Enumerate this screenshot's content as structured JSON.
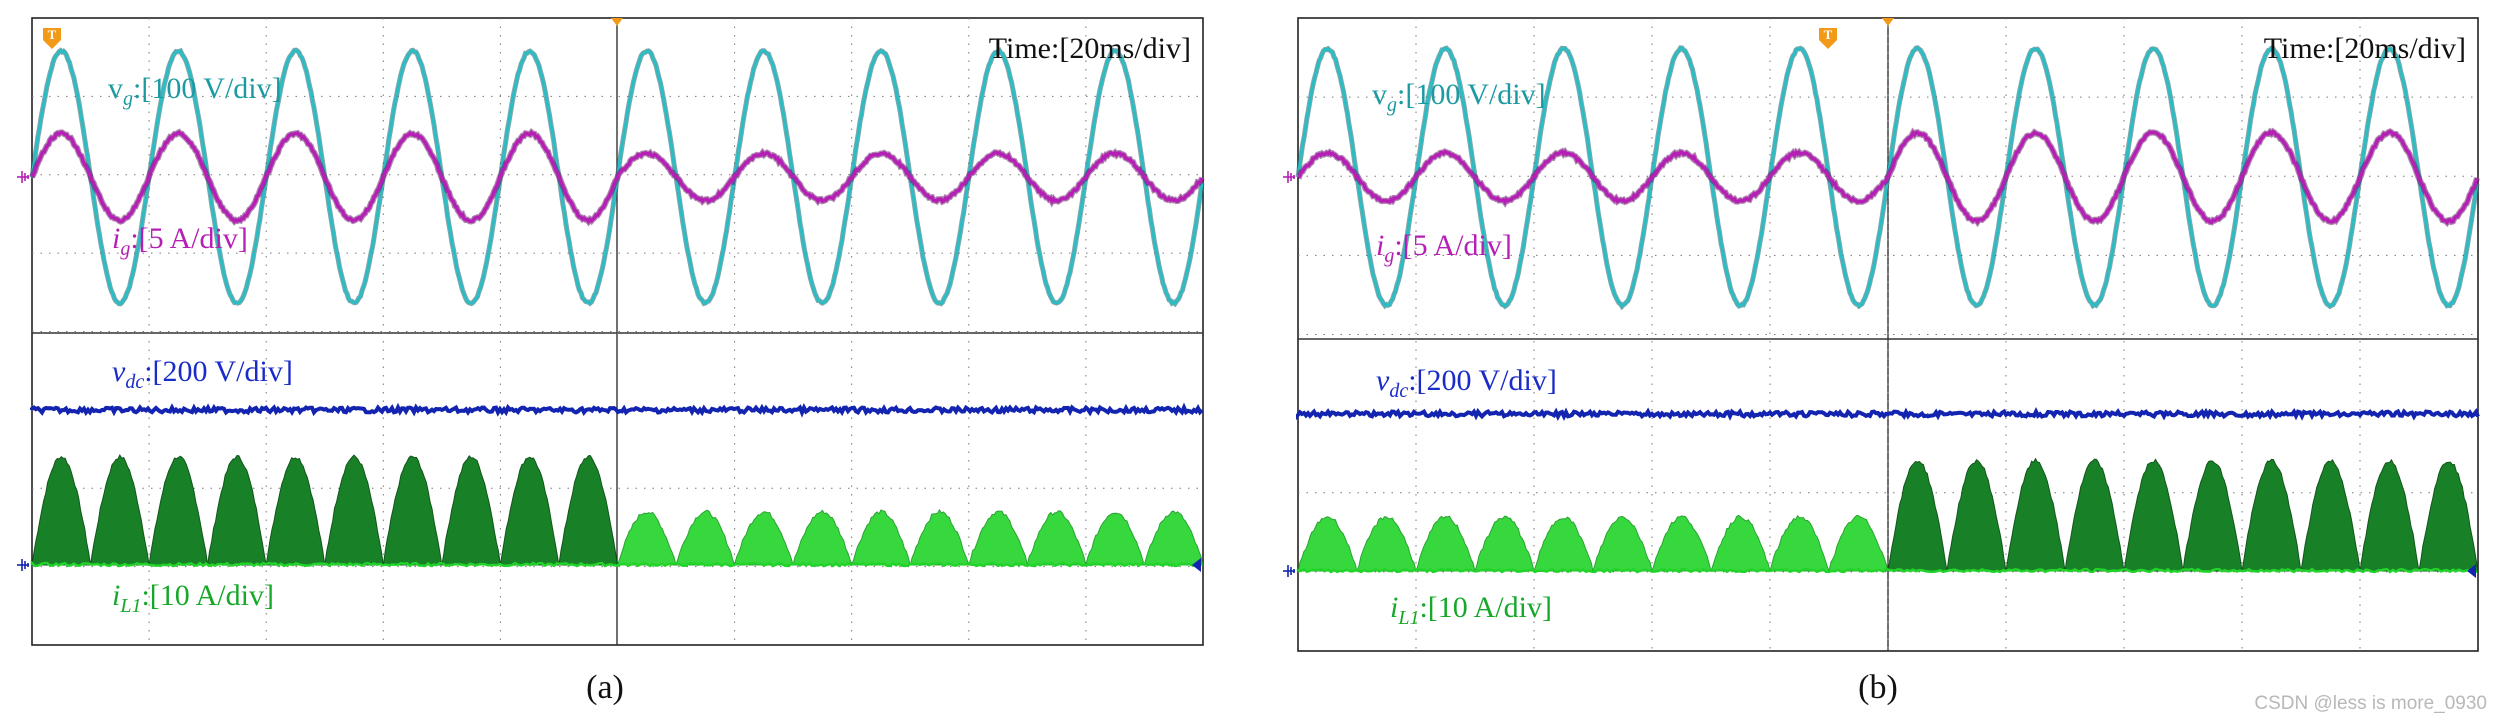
{
  "colors": {
    "vg": "#2bbcc4",
    "ig": "#b51fb5",
    "vdc": "#1224b0",
    "iL1_dark": "#0c7a1c",
    "iL1_light": "#22d42a",
    "label_vg": "#1b9aa2",
    "label_ig": "#b51fb5",
    "label_vdc": "#1a2cc8",
    "label_iL1": "#17a82a",
    "trigger": "#f29a18"
  },
  "icons": [
    "trigger-marker-icon",
    "ground-marker-icon",
    "level-arrow-icon"
  ],
  "panels": [
    {
      "caption": "(a)",
      "time_label": "Time:[20ms/div]",
      "labels": {
        "vg": {
          "sym": "v",
          "sub": "g",
          "unit": ":[100 V/div]"
        },
        "ig": {
          "sym": "i",
          "sub": "g",
          "unit": ":[5 A/div]"
        },
        "vdc": {
          "sym": "v",
          "sub": "dc",
          "unit": ":[200 V/div]"
        },
        "iL1": {
          "sym": "i",
          "sub": "L1",
          "unit": ":[10 A/div]"
        }
      }
    },
    {
      "caption": "(b)",
      "time_label": "Time:[20ms/div]",
      "labels": {
        "vg": {
          "sym": "v",
          "sub": "g",
          "unit": ":[100 V/div]"
        },
        "ig": {
          "sym": "i",
          "sub": "g",
          "unit": ":[5 A/div]"
        },
        "vdc": {
          "sym": "v",
          "sub": "dc",
          "unit": ":[200 V/div]"
        },
        "iL1": {
          "sym": "i",
          "sub": "L1",
          "unit": ":[10 A/div]"
        }
      }
    }
  ],
  "watermark": "CSDN @less is more_0930",
  "chart_data": [
    {
      "type": "line",
      "panel": "(a)",
      "time_per_div_ms": 20,
      "x_divisions": 10,
      "grid": true,
      "fundamental_hz": 50,
      "series": [
        {
          "name": "vg",
          "scale": "100 V/div",
          "amplitude_div": 1.6,
          "amplitude_units": 160
        },
        {
          "name": "ig",
          "scale": "5 A/div",
          "amplitude_div_first_half": 0.55,
          "amplitude_div_second_half": 0.3,
          "amplitude_A_first_half": 2.75,
          "amplitude_A_second_half": 1.5
        },
        {
          "name": "vdc",
          "scale": "200 V/div",
          "level_div": 1.8,
          "level_V": 360
        },
        {
          "name": "iL1",
          "scale": "10 A/div",
          "peak_div_first_half": 1.35,
          "peak_div_second_half": 0.65,
          "peak_A_first_half": 13.5,
          "peak_A_second_half": 6.5
        }
      ]
    },
    {
      "type": "line",
      "panel": "(b)",
      "time_per_div_ms": 20,
      "x_divisions": 10,
      "grid": true,
      "fundamental_hz": 50,
      "series": [
        {
          "name": "vg",
          "scale": "100 V/div",
          "amplitude_div": 1.6,
          "amplitude_units": 160
        },
        {
          "name": "ig",
          "scale": "5 A/div",
          "amplitude_div_first_half": 0.3,
          "amplitude_div_second_half": 0.55,
          "amplitude_A_first_half": 1.5,
          "amplitude_A_second_half": 2.75
        },
        {
          "name": "vdc",
          "scale": "200 V/div",
          "level_div": 1.8,
          "level_V": 360
        },
        {
          "name": "iL1",
          "scale": "10 A/div",
          "peak_div_first_half": 0.65,
          "peak_div_second_half": 1.35,
          "peak_A_first_half": 6.5,
          "peak_A_second_half": 13.5
        }
      ]
    }
  ]
}
